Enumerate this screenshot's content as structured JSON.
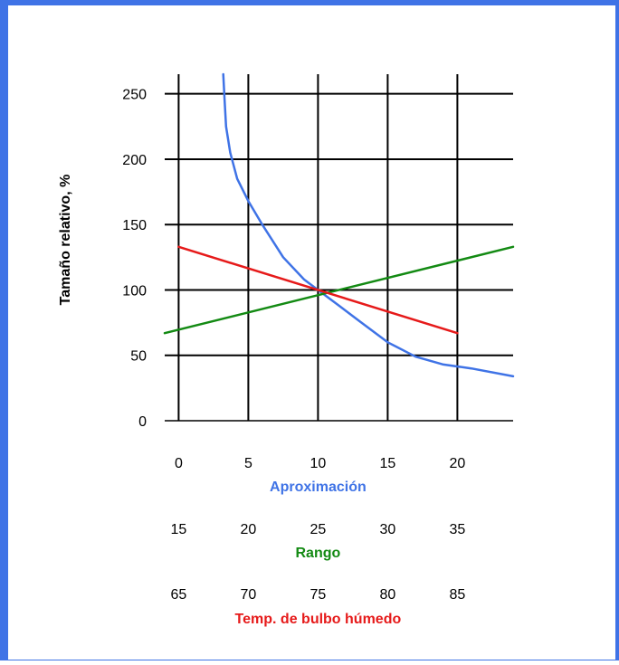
{
  "chart_data": {
    "type": "line",
    "ylabel": "Tamaño relativo, %",
    "ylim": [
      0,
      265
    ],
    "yticks": [
      "0",
      "50",
      "100",
      "150",
      "200",
      "250"
    ],
    "xlim": [
      -1,
      24
    ],
    "axes": [
      {
        "label": "Aproximación",
        "color": "#3f73e6",
        "ticks": [
          "0",
          "5",
          "10",
          "15",
          "20"
        ]
      },
      {
        "label": "Rango",
        "color": "#138a13",
        "ticks": [
          "15",
          "20",
          "25",
          "30",
          "35"
        ]
      },
      {
        "label": "Temp. de bulbo húmedo",
        "color": "#e61a1a",
        "ticks": [
          "65",
          "70",
          "75",
          "80",
          "85"
        ]
      }
    ],
    "series": [
      {
        "color": "#3f73e6",
        "x": [
          3.2,
          3.3,
          3.4,
          3.7,
          4.2,
          5.0,
          6.0,
          7.5,
          9.0,
          10.0,
          11.5,
          13.0,
          15.0,
          17.0,
          19.0,
          21.0,
          24.0
        ],
        "y": [
          265,
          245,
          225,
          205,
          185,
          168,
          150,
          125,
          108,
          100,
          88,
          76,
          60,
          49,
          43,
          40,
          34
        ]
      },
      {
        "color": "#138a13",
        "x": [
          -1,
          24
        ],
        "y": [
          67,
          133
        ]
      },
      {
        "color": "#e61a1a",
        "x": [
          0,
          20
        ],
        "y": [
          133,
          67
        ]
      }
    ]
  }
}
